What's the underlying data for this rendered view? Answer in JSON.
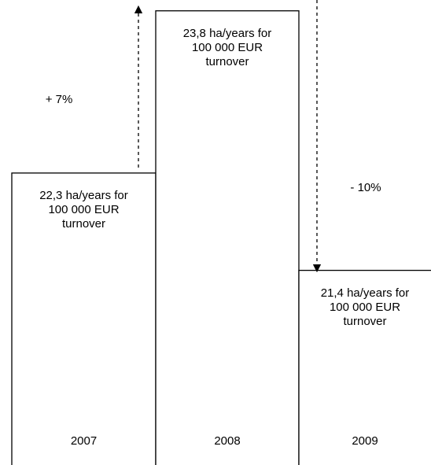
{
  "chart_data": {
    "type": "bar",
    "categories": [
      "2007",
      "2008",
      "2009"
    ],
    "values": [
      22.3,
      23.8,
      21.4
    ],
    "value_labels": [
      "22,3 ha/years for\n100 000 EUR\nturnover",
      "23,8 ha/years for\n100 000 EUR\nturnover",
      "21,4 ha/years for\n100 000 EUR\nturnover"
    ],
    "annotations": [
      "+ 7%",
      "- 10%"
    ],
    "color": "#ffffff",
    "ylim": [
      19.6,
      23.9
    ]
  }
}
